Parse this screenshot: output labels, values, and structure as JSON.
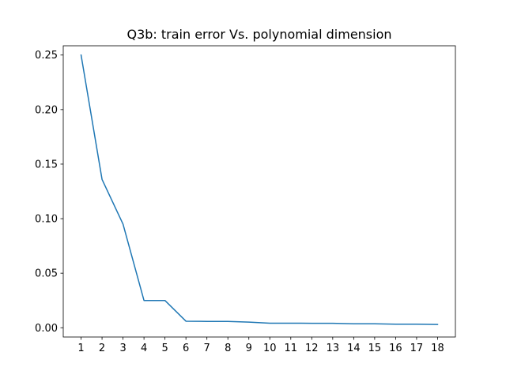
{
  "chart_data": {
    "type": "line",
    "title": "Q3b: train error Vs. polynomial dimension",
    "xlabel": "",
    "ylabel": "",
    "x": [
      1,
      2,
      3,
      4,
      5,
      6,
      7,
      8,
      9,
      10,
      11,
      12,
      13,
      14,
      15,
      16,
      17,
      18
    ],
    "xticks": [
      "1",
      "2",
      "3",
      "4",
      "5",
      "6",
      "7",
      "8",
      "9",
      "10",
      "11",
      "12",
      "13",
      "14",
      "15",
      "16",
      "17",
      "18"
    ],
    "yticks": [
      "0.00",
      "0.05",
      "0.10",
      "0.15",
      "0.20",
      "0.25"
    ],
    "ytick_values": [
      0,
      0.05,
      0.1,
      0.15,
      0.2,
      0.25
    ],
    "xlim": [
      0.15,
      18.85
    ],
    "ylim": [
      -0.0085,
      0.2585
    ],
    "grid": false,
    "series": [
      {
        "values": [
          0.25,
          0.136,
          0.095,
          0.025,
          0.025,
          0.006,
          0.0058,
          0.0058,
          0.0052,
          0.0042,
          0.0042,
          0.0041,
          0.0041,
          0.0036,
          0.0036,
          0.0033,
          0.0033,
          0.003
        ],
        "color": "#1f77b4"
      }
    ]
  }
}
